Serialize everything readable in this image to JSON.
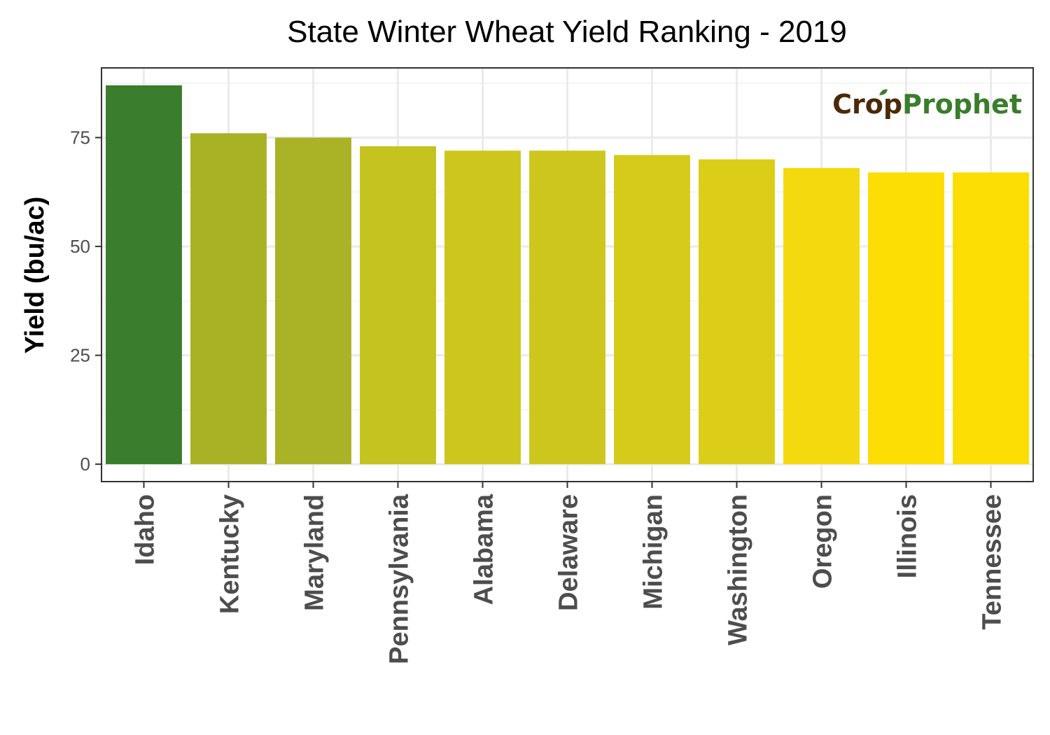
{
  "chart_data": {
    "type": "bar",
    "title": "State Winter Wheat Yield Ranking - 2019",
    "ylabel": "Yield (bu/ac)",
    "xlabel": "",
    "categories": [
      "Idaho",
      "Kentucky",
      "Maryland",
      "Pennsylvania",
      "Alabama",
      "Delaware",
      "Michigan",
      "Washington",
      "Oregon",
      "Illinois",
      "Tennessee"
    ],
    "values": [
      87,
      76,
      75,
      73,
      72,
      72,
      71,
      70,
      68,
      67,
      67
    ],
    "bar_colors": [
      "#3a7d2c",
      "#a8b224",
      "#aab225",
      "#c4c31f",
      "#cdc61d",
      "#cdc61d",
      "#d6ca1b",
      "#dccd18",
      "#f3d90d",
      "#fcdd04",
      "#fcdd04"
    ],
    "yticks": [
      "0",
      "25",
      "50",
      "75"
    ],
    "ylim": [
      -4,
      91
    ],
    "grid": true,
    "legend": "none"
  },
  "logo": {
    "crop": "Cr",
    "o": "o",
    "p": "p",
    "prophet": "Prophet",
    "brown": "#4a2a08",
    "green": "#3a7d2c"
  }
}
